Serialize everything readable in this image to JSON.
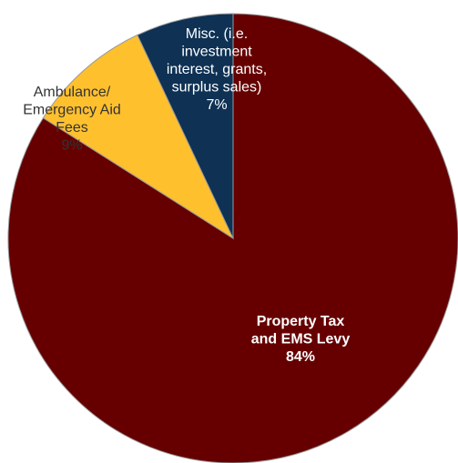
{
  "chart_data": {
    "type": "pie",
    "title": "",
    "slices": [
      {
        "label_lines": [
          "Property Tax",
          "and EMS Levy"
        ],
        "percent_text": "84%",
        "value": 84,
        "color": "#660000",
        "text_color": "#ffffff",
        "font_weight": "bold"
      },
      {
        "label_lines": [
          "Ambulance/",
          "Emergency Aid",
          "Fees"
        ],
        "percent_text": "9%",
        "value": 9,
        "color": "#FFC02E",
        "text_color": "#333333",
        "font_weight": "normal"
      },
      {
        "label_lines": [
          "Misc. (i.e.",
          "investment",
          "interest, grants,",
          "surplus sales)"
        ],
        "percent_text": "7%",
        "value": 7,
        "color": "#0E3154",
        "text_color": "#ffffff",
        "font_weight": "normal"
      }
    ],
    "slice_border_color": "#9a9a9a",
    "start_direction": "top",
    "rotation": "clockwise",
    "legend": "none"
  }
}
